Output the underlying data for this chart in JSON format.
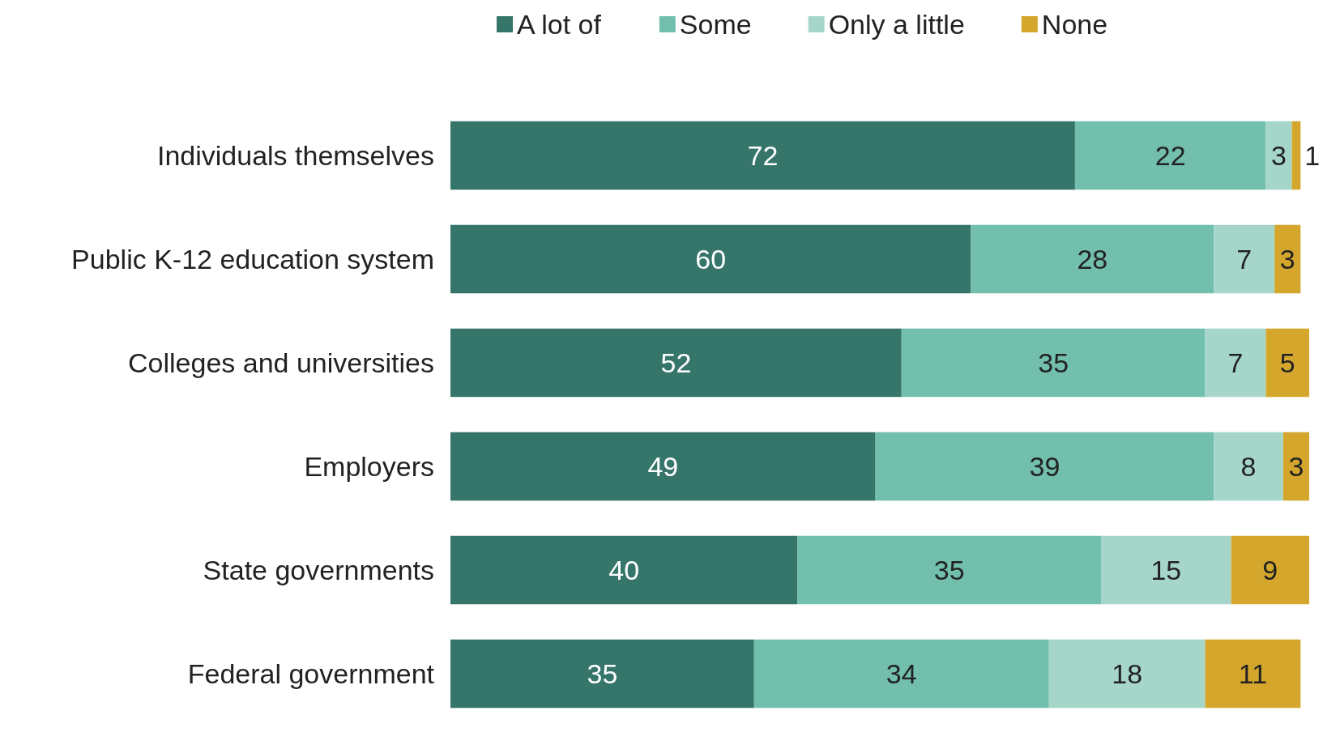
{
  "chart_data": {
    "type": "bar",
    "orientation": "horizontal",
    "stacked": true,
    "data_labels": true,
    "legend": "top",
    "categories": [
      "Individuals themselves",
      "Public K-12 education system",
      "Colleges and universities",
      "Employers",
      "State governments",
      "Federal government"
    ],
    "series": [
      {
        "name": "A lot of",
        "color": "#35756a",
        "values": [
          72,
          60,
          52,
          49,
          40,
          35
        ]
      },
      {
        "name": "Some",
        "color": "#72bfae",
        "values": [
          22,
          28,
          35,
          39,
          35,
          34
        ]
      },
      {
        "name": "Only a little",
        "color": "#a5d6c9",
        "values": [
          3,
          7,
          7,
          8,
          15,
          18
        ]
      },
      {
        "name": "None",
        "color": "#d4a72c",
        "values": [
          1,
          3,
          5,
          3,
          9,
          11
        ]
      }
    ]
  }
}
